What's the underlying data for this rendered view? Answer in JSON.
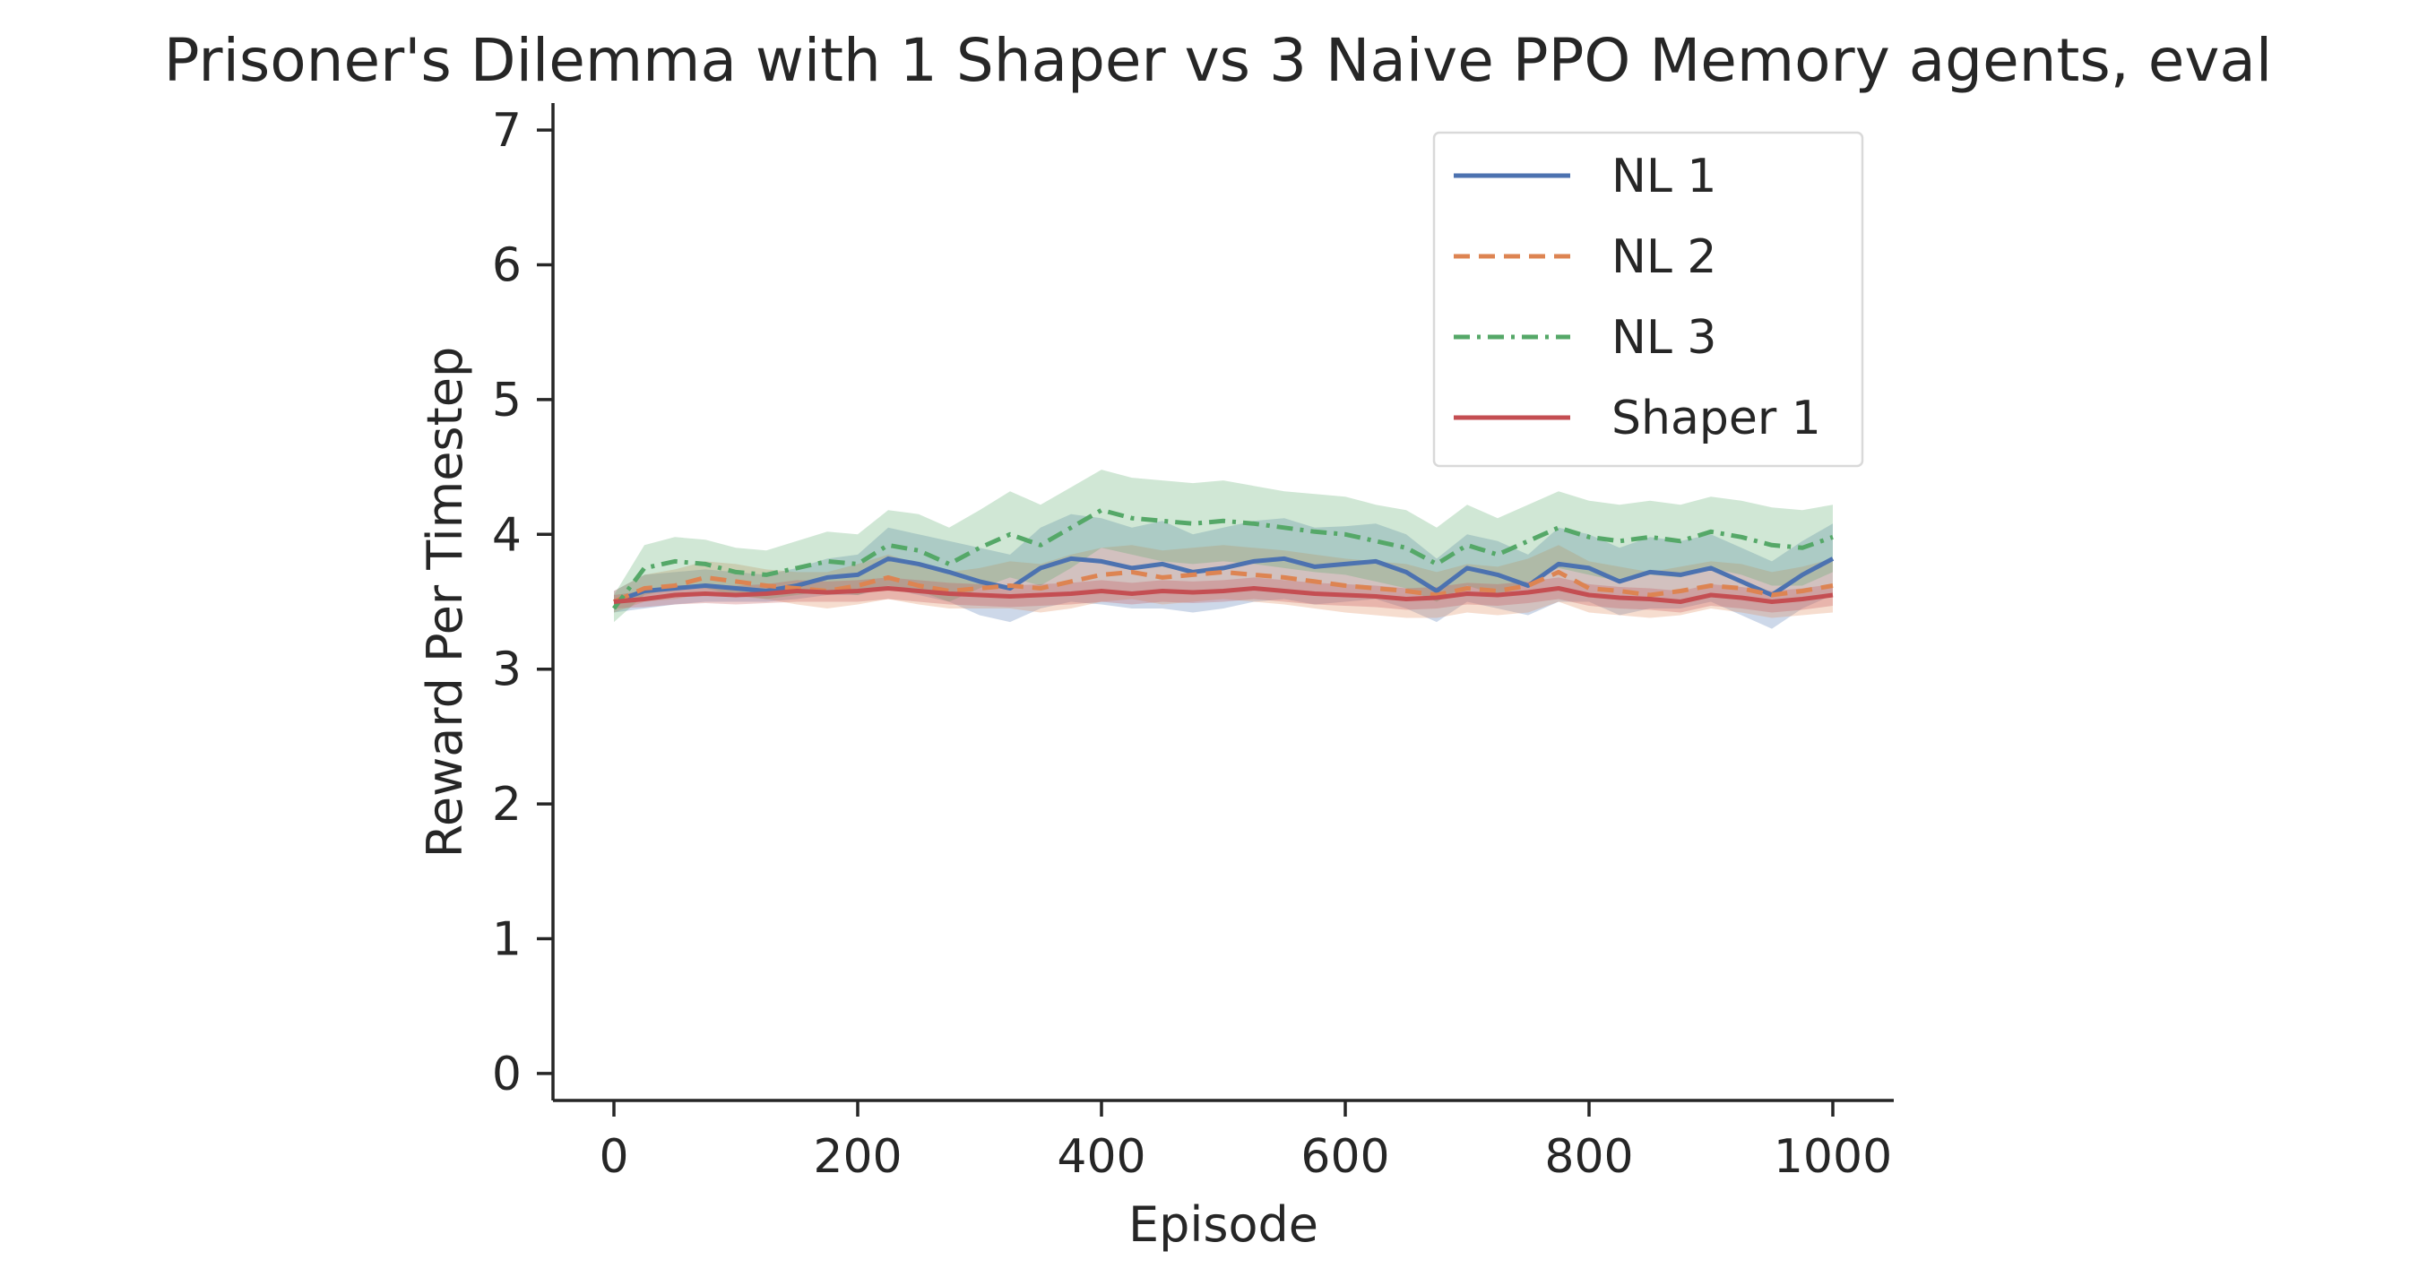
{
  "chart_data": {
    "type": "line",
    "title": "Prisoner's Dilemma with 1 Shaper vs 3 Naive PPO Memory agents, eval",
    "xlabel": "Episode",
    "ylabel": "Reward Per Timestep",
    "xlim": [
      -50,
      1050
    ],
    "ylim": [
      -0.2,
      7.2
    ],
    "xticks": [
      0,
      200,
      400,
      600,
      800,
      1000
    ],
    "yticks": [
      0,
      1,
      2,
      3,
      4,
      5,
      6,
      7
    ],
    "grid": false,
    "legend_position": "top-right",
    "series": [
      {
        "name": "NL 1",
        "color": "#4c72b0",
        "dash": "solid",
        "x": [
          0,
          25,
          50,
          75,
          100,
          125,
          150,
          175,
          200,
          225,
          250,
          275,
          300,
          325,
          350,
          375,
          400,
          425,
          450,
          475,
          500,
          525,
          550,
          575,
          600,
          625,
          650,
          675,
          700,
          725,
          750,
          775,
          800,
          825,
          850,
          875,
          900,
          925,
          950,
          975,
          1000
        ],
        "y": [
          3.5,
          3.58,
          3.6,
          3.62,
          3.6,
          3.58,
          3.62,
          3.68,
          3.7,
          3.82,
          3.78,
          3.72,
          3.65,
          3.6,
          3.75,
          3.82,
          3.8,
          3.75,
          3.78,
          3.72,
          3.75,
          3.8,
          3.82,
          3.76,
          3.78,
          3.8,
          3.72,
          3.58,
          3.75,
          3.7,
          3.62,
          3.78,
          3.75,
          3.65,
          3.72,
          3.7,
          3.75,
          3.65,
          3.55,
          3.7,
          3.82
        ],
        "lower": [
          3.42,
          3.45,
          3.48,
          3.5,
          3.5,
          3.5,
          3.52,
          3.55,
          3.55,
          3.6,
          3.55,
          3.5,
          3.4,
          3.35,
          3.45,
          3.5,
          3.48,
          3.45,
          3.45,
          3.42,
          3.45,
          3.5,
          3.52,
          3.48,
          3.5,
          3.52,
          3.45,
          3.35,
          3.5,
          3.45,
          3.4,
          3.5,
          3.5,
          3.4,
          3.45,
          3.45,
          3.5,
          3.4,
          3.3,
          3.45,
          3.55
        ],
        "upper": [
          3.58,
          3.7,
          3.72,
          3.74,
          3.72,
          3.7,
          3.75,
          3.82,
          3.85,
          4.05,
          4.0,
          3.95,
          3.9,
          3.85,
          4.05,
          4.15,
          4.12,
          4.05,
          4.1,
          4.0,
          4.05,
          4.1,
          4.12,
          4.05,
          4.06,
          4.08,
          4.0,
          3.82,
          4.0,
          3.95,
          3.85,
          4.05,
          4.0,
          3.9,
          3.98,
          3.95,
          4.0,
          3.9,
          3.8,
          3.95,
          4.08
        ]
      },
      {
        "name": "NL 2",
        "color": "#dd8452",
        "dash": "dashed",
        "x": [
          0,
          25,
          50,
          75,
          100,
          125,
          150,
          175,
          200,
          225,
          250,
          275,
          300,
          325,
          350,
          375,
          400,
          425,
          450,
          475,
          500,
          525,
          550,
          575,
          600,
          625,
          650,
          675,
          700,
          725,
          750,
          775,
          800,
          825,
          850,
          875,
          900,
          925,
          950,
          975,
          1000
        ],
        "y": [
          3.5,
          3.6,
          3.62,
          3.68,
          3.65,
          3.62,
          3.6,
          3.58,
          3.62,
          3.68,
          3.62,
          3.58,
          3.6,
          3.62,
          3.6,
          3.65,
          3.7,
          3.72,
          3.68,
          3.7,
          3.72,
          3.7,
          3.68,
          3.65,
          3.62,
          3.6,
          3.58,
          3.55,
          3.6,
          3.58,
          3.62,
          3.72,
          3.6,
          3.58,
          3.55,
          3.58,
          3.62,
          3.6,
          3.55,
          3.58,
          3.62
        ],
        "lower": [
          3.42,
          3.5,
          3.52,
          3.56,
          3.54,
          3.52,
          3.48,
          3.45,
          3.48,
          3.52,
          3.48,
          3.45,
          3.45,
          3.45,
          3.42,
          3.45,
          3.5,
          3.52,
          3.48,
          3.5,
          3.52,
          3.5,
          3.48,
          3.45,
          3.42,
          3.4,
          3.38,
          3.38,
          3.42,
          3.4,
          3.42,
          3.5,
          3.42,
          3.4,
          3.38,
          3.4,
          3.45,
          3.42,
          3.38,
          3.4,
          3.42
        ],
        "upper": [
          3.58,
          3.7,
          3.74,
          3.8,
          3.78,
          3.74,
          3.72,
          3.72,
          3.78,
          3.85,
          3.78,
          3.72,
          3.75,
          3.8,
          3.78,
          3.85,
          3.9,
          3.92,
          3.88,
          3.9,
          3.92,
          3.9,
          3.88,
          3.85,
          3.82,
          3.8,
          3.78,
          3.72,
          3.78,
          3.76,
          3.82,
          3.92,
          3.8,
          3.76,
          3.72,
          3.76,
          3.8,
          3.78,
          3.72,
          3.76,
          3.82
        ]
      },
      {
        "name": "NL 3",
        "color": "#55a868",
        "dash": "dashdot",
        "x": [
          0,
          25,
          50,
          75,
          100,
          125,
          150,
          175,
          200,
          225,
          250,
          275,
          300,
          325,
          350,
          375,
          400,
          425,
          450,
          475,
          500,
          525,
          550,
          575,
          600,
          625,
          650,
          675,
          700,
          725,
          750,
          775,
          800,
          825,
          850,
          875,
          900,
          925,
          950,
          975,
          1000
        ],
        "y": [
          3.45,
          3.75,
          3.8,
          3.78,
          3.72,
          3.7,
          3.75,
          3.8,
          3.78,
          3.92,
          3.88,
          3.78,
          3.9,
          4.0,
          3.92,
          4.05,
          4.18,
          4.12,
          4.1,
          4.08,
          4.1,
          4.08,
          4.05,
          4.02,
          4.0,
          3.95,
          3.9,
          3.78,
          3.92,
          3.85,
          3.95,
          4.05,
          3.98,
          3.95,
          3.98,
          3.95,
          4.02,
          3.98,
          3.92,
          3.9,
          3.98
        ],
        "lower": [
          3.35,
          3.55,
          3.6,
          3.6,
          3.55,
          3.52,
          3.55,
          3.58,
          3.55,
          3.62,
          3.58,
          3.5,
          3.6,
          3.68,
          3.62,
          3.75,
          3.9,
          3.85,
          3.8,
          3.78,
          3.8,
          3.78,
          3.75,
          3.72,
          3.7,
          3.65,
          3.6,
          3.5,
          3.62,
          3.55,
          3.65,
          3.75,
          3.7,
          3.65,
          3.7,
          3.68,
          3.75,
          3.7,
          3.62,
          3.62,
          3.72
        ],
        "upper": [
          3.55,
          3.92,
          3.98,
          3.96,
          3.9,
          3.88,
          3.95,
          4.02,
          4.0,
          4.18,
          4.15,
          4.05,
          4.18,
          4.32,
          4.22,
          4.35,
          4.48,
          4.42,
          4.4,
          4.38,
          4.4,
          4.36,
          4.32,
          4.3,
          4.28,
          4.22,
          4.18,
          4.05,
          4.22,
          4.12,
          4.22,
          4.32,
          4.25,
          4.22,
          4.25,
          4.22,
          4.28,
          4.25,
          4.2,
          4.18,
          4.22
        ]
      },
      {
        "name": "Shaper 1",
        "color": "#c44e52",
        "dash": "solid",
        "x": [
          0,
          25,
          50,
          75,
          100,
          125,
          150,
          175,
          200,
          225,
          250,
          275,
          300,
          325,
          350,
          375,
          400,
          425,
          450,
          475,
          500,
          525,
          550,
          575,
          600,
          625,
          650,
          675,
          700,
          725,
          750,
          775,
          800,
          825,
          850,
          875,
          900,
          925,
          950,
          975,
          1000
        ],
        "y": [
          3.5,
          3.52,
          3.55,
          3.56,
          3.55,
          3.56,
          3.58,
          3.57,
          3.58,
          3.6,
          3.58,
          3.56,
          3.55,
          3.54,
          3.55,
          3.56,
          3.58,
          3.56,
          3.58,
          3.57,
          3.58,
          3.6,
          3.58,
          3.56,
          3.55,
          3.54,
          3.52,
          3.53,
          3.56,
          3.55,
          3.57,
          3.6,
          3.55,
          3.53,
          3.52,
          3.5,
          3.55,
          3.53,
          3.5,
          3.52,
          3.55
        ],
        "lower": [
          3.45,
          3.46,
          3.48,
          3.49,
          3.48,
          3.49,
          3.5,
          3.5,
          3.5,
          3.52,
          3.5,
          3.48,
          3.47,
          3.46,
          3.47,
          3.48,
          3.5,
          3.48,
          3.5,
          3.49,
          3.5,
          3.52,
          3.5,
          3.48,
          3.47,
          3.46,
          3.44,
          3.45,
          3.48,
          3.47,
          3.49,
          3.52,
          3.47,
          3.45,
          3.44,
          3.42,
          3.47,
          3.45,
          3.42,
          3.44,
          3.47
        ],
        "upper": [
          3.55,
          3.58,
          3.62,
          3.63,
          3.62,
          3.63,
          3.66,
          3.65,
          3.66,
          3.68,
          3.66,
          3.64,
          3.63,
          3.62,
          3.63,
          3.64,
          3.66,
          3.64,
          3.66,
          3.65,
          3.66,
          3.68,
          3.66,
          3.64,
          3.63,
          3.62,
          3.6,
          3.61,
          3.64,
          3.63,
          3.65,
          3.68,
          3.63,
          3.61,
          3.6,
          3.58,
          3.63,
          3.61,
          3.58,
          3.6,
          3.63
        ]
      }
    ]
  }
}
